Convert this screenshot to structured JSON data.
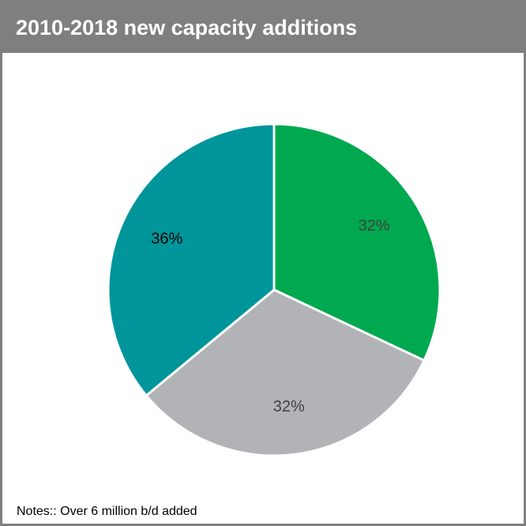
{
  "header": {
    "title": "2010-2018 new capacity additions"
  },
  "notes": {
    "text": "Notes:: Over 6 million b/d added"
  },
  "colors": {
    "header_bg": "#7f7f7f",
    "border": "#7f7f7f",
    "slice_green": "#00a94f",
    "slice_gray": "#b2b3b6",
    "slice_teal": "#00959a"
  },
  "chart_data": {
    "type": "pie",
    "title": "2010-2018 new capacity additions",
    "slices": [
      {
        "value": 32,
        "label": "32%",
        "color": "#00a94f",
        "label_color": "#404040"
      },
      {
        "value": 32,
        "label": "32%",
        "color": "#b2b3b6",
        "label_color": "#404040"
      },
      {
        "value": 36,
        "label": "36%",
        "color": "#00959a",
        "label_color": "#000000"
      }
    ],
    "start_angle_deg": 0,
    "direction": "clockwise",
    "legend": "none"
  }
}
